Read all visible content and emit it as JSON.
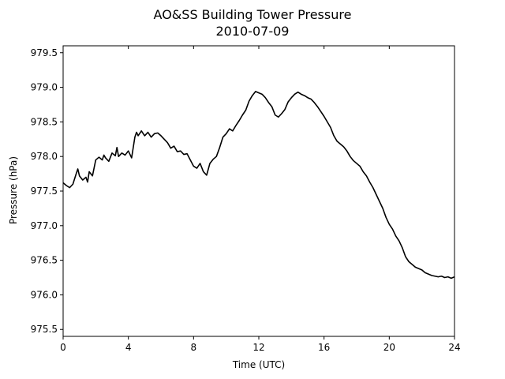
{
  "chart_data": {
    "type": "line",
    "title": "AO&SS Building Tower Pressure",
    "subtitle": "2010-07-09",
    "xlabel": "Time (UTC)",
    "ylabel": "Pressure (hPa)",
    "xlim": [
      0,
      24
    ],
    "ylim": [
      975.4,
      979.6
    ],
    "xticks": [
      0,
      4,
      8,
      12,
      16,
      20,
      24
    ],
    "xtick_labels": [
      "0",
      "4",
      "8",
      "12",
      "16",
      "20",
      "24"
    ],
    "yticks": [
      975.5,
      976.0,
      976.5,
      977.0,
      977.5,
      978.0,
      978.5,
      979.0,
      979.5
    ],
    "ytick_labels": [
      "975.5",
      "976.0",
      "976.5",
      "977.0",
      "977.5",
      "978.0",
      "978.5",
      "979.0",
      "979.5"
    ],
    "grid": false,
    "line_color": "#000000",
    "series": [
      {
        "x": [
          0,
          0.2,
          0.4,
          0.6,
          0.8,
          0.9,
          1.0,
          1.2,
          1.4,
          1.5,
          1.6,
          1.8,
          2.0,
          2.2,
          2.4,
          2.5,
          2.6,
          2.8,
          3.0,
          3.2,
          3.3,
          3.4,
          3.6,
          3.8,
          4.0,
          4.2,
          4.4,
          4.5,
          4.6,
          4.8,
          5.0,
          5.2,
          5.4,
          5.6,
          5.8,
          6.0,
          6.2,
          6.4,
          6.6,
          6.8,
          7.0,
          7.2,
          7.4,
          7.6,
          7.8,
          8.0,
          8.2,
          8.4,
          8.6,
          8.8,
          9.0,
          9.2,
          9.4,
          9.6,
          9.8,
          10.0,
          10.2,
          10.4,
          10.6,
          10.8,
          11.0,
          11.2,
          11.4,
          11.6,
          11.8,
          12.0,
          12.2,
          12.4,
          12.6,
          12.8,
          13.0,
          13.2,
          13.4,
          13.6,
          13.8,
          14.0,
          14.2,
          14.4,
          14.6,
          14.8,
          15.0,
          15.2,
          15.4,
          15.6,
          15.8,
          16.0,
          16.2,
          16.4,
          16.6,
          16.8,
          17.0,
          17.2,
          17.4,
          17.6,
          17.8,
          18.0,
          18.2,
          18.4,
          18.6,
          18.8,
          19.0,
          19.2,
          19.4,
          19.6,
          19.8,
          20.0,
          20.2,
          20.4,
          20.6,
          20.8,
          21.0,
          21.2,
          21.4,
          21.6,
          21.8,
          22.0,
          22.2,
          22.4,
          22.6,
          22.8,
          23.0,
          23.2,
          23.4,
          23.6,
          23.8,
          24.0
        ],
        "y": [
          977.62,
          977.58,
          977.55,
          977.6,
          977.75,
          977.82,
          977.72,
          977.66,
          977.7,
          977.63,
          977.78,
          977.72,
          977.95,
          977.99,
          977.95,
          978.02,
          977.98,
          977.93,
          978.05,
          978.01,
          978.13,
          978.0,
          978.05,
          978.02,
          978.08,
          977.98,
          978.28,
          978.35,
          978.3,
          978.37,
          978.3,
          978.35,
          978.28,
          978.33,
          978.34,
          978.3,
          978.25,
          978.2,
          978.12,
          978.15,
          978.07,
          978.08,
          978.03,
          978.04,
          977.95,
          977.86,
          977.83,
          977.9,
          977.78,
          977.73,
          977.9,
          977.96,
          978.0,
          978.13,
          978.28,
          978.33,
          978.4,
          978.37,
          978.45,
          978.52,
          978.6,
          978.67,
          978.8,
          978.88,
          978.94,
          978.92,
          978.9,
          978.85,
          978.78,
          978.72,
          978.6,
          978.57,
          978.62,
          978.68,
          978.79,
          978.85,
          978.9,
          978.93,
          978.9,
          978.88,
          978.85,
          978.83,
          978.78,
          978.72,
          978.65,
          978.58,
          978.5,
          978.42,
          978.3,
          978.22,
          978.18,
          978.14,
          978.08,
          978.0,
          977.94,
          977.9,
          977.86,
          977.78,
          977.72,
          977.63,
          977.55,
          977.45,
          977.35,
          977.25,
          977.12,
          977.02,
          976.95,
          976.85,
          976.78,
          976.68,
          976.55,
          976.48,
          976.44,
          976.4,
          976.38,
          976.36,
          976.32,
          976.3,
          976.28,
          976.27,
          976.26,
          976.27,
          976.25,
          976.26,
          976.24,
          976.26
        ]
      }
    ]
  }
}
